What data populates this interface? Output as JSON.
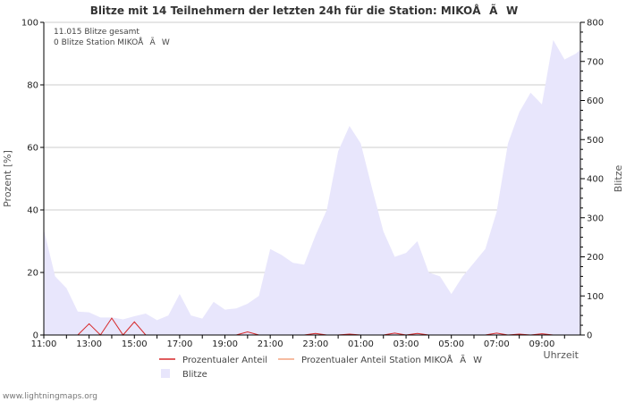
{
  "chart_data": {
    "type": "area",
    "title": "Blitze mit 14 Teilnehmern der letzten 24h für die Station: MIKOÅÃW",
    "ylabel_left": "Prozent   [%]",
    "ylabel_right": "Blitze",
    "xlabel": "Uhrzeit",
    "ylim_left": [
      0,
      100
    ],
    "ylim_right": [
      0,
      800
    ],
    "yticks_left": [
      "0",
      "20",
      "40",
      "60",
      "80",
      "100"
    ],
    "yticks_right": [
      "0",
      "100",
      "200",
      "300",
      "400",
      "500",
      "600",
      "700",
      "800"
    ],
    "x_tick_labels": [
      "11:00",
      "13:00",
      "15:00",
      "17:00",
      "19:00",
      "21:00",
      "23:00",
      "01:00",
      "03:00",
      "05:00",
      "07:00",
      "09:00"
    ],
    "x_tick_positions": [
      0,
      2,
      4,
      6,
      8,
      10,
      12,
      14,
      16,
      18,
      20,
      22
    ],
    "x_range": [
      0,
      23.7
    ],
    "info_lines": [
      "11.015 Blitze gesamt",
      "0 Blitze Station MIKOÅÃW"
    ],
    "series": [
      {
        "name": "Blitze",
        "axis": "right",
        "color": "#e8e6fc",
        "x": [
          0,
          0.5,
          1,
          1.5,
          2,
          2.5,
          3,
          3.5,
          4,
          4.5,
          5,
          5.5,
          6,
          6.5,
          7,
          7.5,
          8,
          8.5,
          9,
          9.5,
          10,
          10.5,
          11,
          11.5,
          12,
          12.5,
          13,
          13.5,
          14,
          14.5,
          15,
          15.5,
          16,
          16.5,
          17,
          17.5,
          18,
          18.5,
          19,
          19.5,
          20,
          20.5,
          21,
          21.5,
          22,
          22.5,
          23,
          23.5,
          23.7
        ],
        "values": [
          270,
          150,
          120,
          60,
          58,
          45,
          45,
          40,
          48,
          55,
          38,
          50,
          105,
          50,
          42,
          85,
          65,
          68,
          80,
          100,
          220,
          205,
          185,
          180,
          255,
          320,
          470,
          535,
          490,
          375,
          265,
          200,
          210,
          240,
          160,
          150,
          105,
          150,
          185,
          220,
          315,
          490,
          570,
          620,
          590,
          755,
          705,
          720,
          730
        ]
      },
      {
        "name": "Prozentualer Anteil",
        "axis": "left",
        "color": "#d62728",
        "x": [
          0,
          1.5,
          2,
          2.5,
          3,
          3.5,
          4,
          4.5,
          5,
          8.5,
          9,
          9.5,
          11.5,
          12,
          12.5,
          13,
          13.5,
          14,
          15,
          15.5,
          16,
          16.5,
          17,
          19.5,
          20,
          20.5,
          21,
          21.5,
          22,
          22.5
        ],
        "values": [
          0,
          0,
          3.6,
          0,
          5.4,
          0,
          4.2,
          0,
          0,
          0,
          1.0,
          0,
          0,
          0.5,
          0,
          0,
          0.3,
          0,
          0,
          0.6,
          0,
          0.5,
          0,
          0,
          0.6,
          0,
          0.3,
          0,
          0.4,
          0
        ]
      },
      {
        "name": "Prozentualer Anteil Station MIKOÅÃW",
        "axis": "left",
        "color": "#f4a582",
        "x": [
          0,
          23.7
        ],
        "values": [
          0,
          0
        ]
      }
    ],
    "legend": [
      {
        "label": "Prozentualer Anteil",
        "kind": "line",
        "color": "#d62728"
      },
      {
        "label": "Prozentualer Anteil Station MIKOÅÃW",
        "kind": "line",
        "color": "#f4a582"
      },
      {
        "label": "Blitze",
        "kind": "box",
        "color": "#e8e6fc"
      }
    ]
  },
  "footer": "www.lightningmaps.org"
}
